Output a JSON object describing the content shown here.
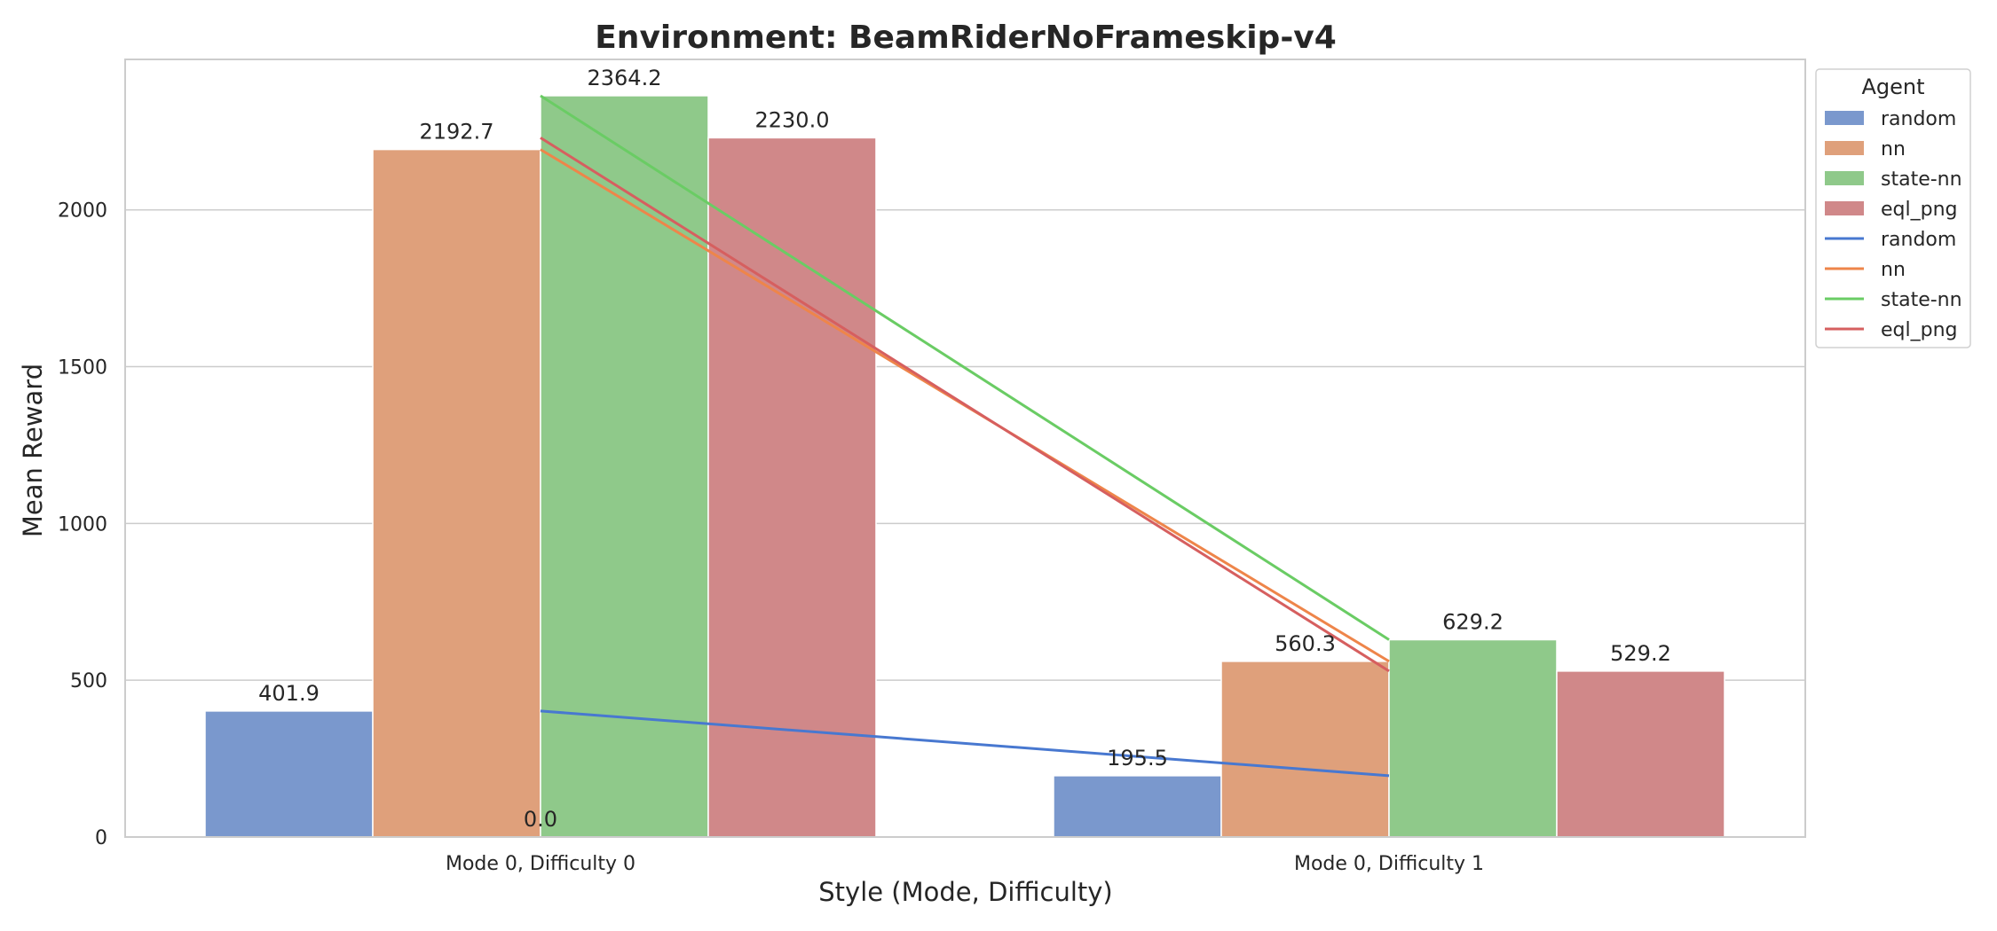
{
  "chart_data": {
    "type": "bar",
    "title": "Environment: BeamRiderNoFrameskip-v4",
    "xlabel": "Style (Mode, Difficulty)",
    "ylabel": "Mean Reward",
    "categories": [
      "Mode 0, Difficulty 0",
      "Mode 0, Difficulty 1"
    ],
    "ylim": [
      0,
      2480
    ],
    "yticks": [
      0,
      500,
      1000,
      1500,
      2000
    ],
    "grid": "horizontal",
    "legend": {
      "title": "Agent",
      "placement": "outside top-right",
      "bar_entries": [
        "random",
        "nn",
        "state-nn",
        "eql_png"
      ],
      "line_entries": [
        "random",
        "nn",
        "state-nn",
        "eql_png"
      ]
    },
    "series": [
      {
        "name": "random",
        "values": [
          401.9,
          195.5
        ],
        "bar_color": "#7a98cd",
        "line_color": "#4878d0"
      },
      {
        "name": "nn",
        "values": [
          2192.7,
          560.3
        ],
        "bar_color": "#dfa07b",
        "line_color": "#ee854a"
      },
      {
        "name": "state-nn",
        "values": [
          2364.2,
          629.2
        ],
        "bar_color": "#8fc98a",
        "line_color": "#6acc64"
      },
      {
        "name": "eql_png",
        "values": [
          2230.0,
          529.2
        ],
        "bar_color": "#d08889",
        "line_color": "#d65f5f"
      }
    ],
    "data_labels": [
      {
        "category": 0,
        "series": 0,
        "text": "401.9"
      },
      {
        "category": 0,
        "series": 1,
        "text": "2192.7"
      },
      {
        "category": 0,
        "series": 2,
        "text": "2364.2"
      },
      {
        "category": 0,
        "series": 3,
        "text": "2230.0"
      },
      {
        "category": 1,
        "series": 0,
        "text": "195.5"
      },
      {
        "category": 1,
        "series": 1,
        "text": "560.3"
      },
      {
        "category": 1,
        "series": 2,
        "text": "629.2"
      },
      {
        "category": 1,
        "series": 3,
        "text": "529.2"
      },
      {
        "category": 0,
        "series": null,
        "value": 0,
        "text": "0.0"
      }
    ]
  }
}
